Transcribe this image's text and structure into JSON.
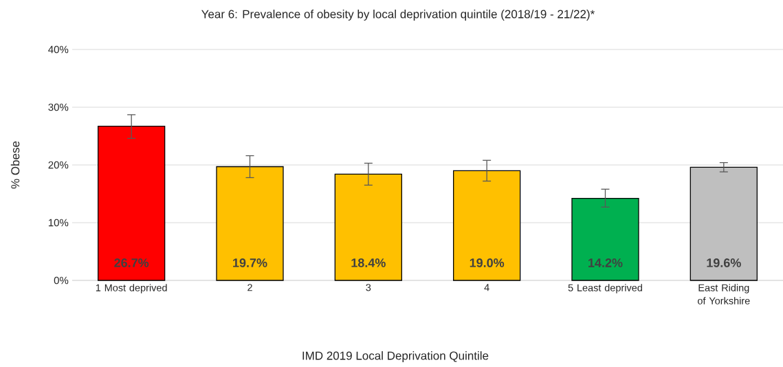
{
  "chart_data": {
    "type": "bar",
    "title": "Year 6: Prevalence of obesity by local deprivation quintile (2018/19 - 21/22)*",
    "xlabel": "IMD 2019 Local Deprivation Quintile",
    "ylabel": "% Obese",
    "categories": [
      "1 Most deprived",
      "2",
      "3",
      "4",
      "5 Least deprived",
      "East Riding of Yorkshire"
    ],
    "values": [
      26.7,
      19.7,
      18.4,
      19.0,
      14.2,
      19.6
    ],
    "colors": [
      "#ff0000",
      "#ffc000",
      "#ffc000",
      "#ffc000",
      "#00b050",
      "#bfbfbf"
    ],
    "errors": [
      [
        24.6,
        28.7
      ],
      [
        17.8,
        21.6
      ],
      [
        16.5,
        20.3
      ],
      [
        17.2,
        20.8
      ],
      [
        12.7,
        15.8
      ],
      [
        18.8,
        20.4
      ]
    ],
    "value_labels": [
      "26.7%",
      "19.7%",
      "18.4%",
      "19.0%",
      "14.2%",
      "19.6%"
    ],
    "ylim": [
      0,
      40
    ],
    "yticks": [
      {
        "value": 0,
        "label": "0%"
      },
      {
        "value": 10,
        "label": "10%"
      },
      {
        "value": 20,
        "label": "20%"
      },
      {
        "value": 30,
        "label": "30%"
      },
      {
        "value": 40,
        "label": "40%"
      }
    ],
    "grid": "y"
  }
}
